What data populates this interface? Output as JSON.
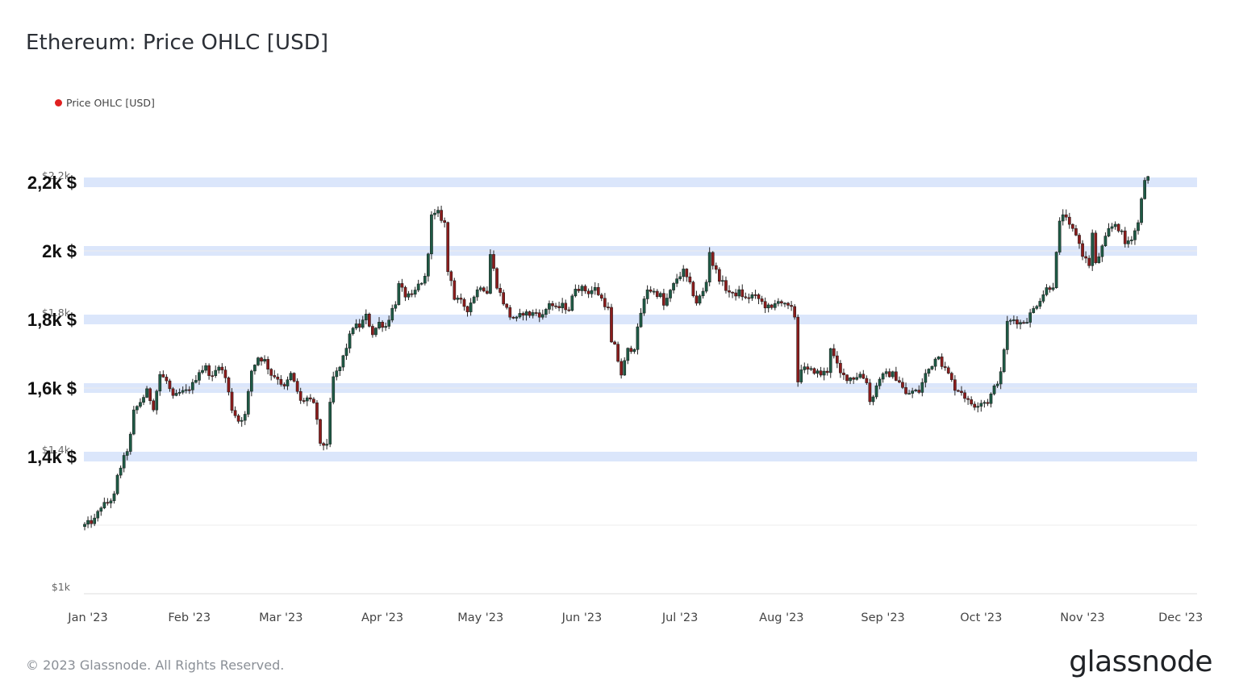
{
  "header": {
    "title": "Ethereum: Price OHLC [USD]"
  },
  "legend": {
    "label": "Price OHLC [USD]",
    "color": "#e02020"
  },
  "footer": {
    "copyright": "© 2023 Glassnode. All Rights Reserved.",
    "brand": "glassnode"
  },
  "colors": {
    "up": "#1e5a45",
    "down": "#8b1c1c",
    "highlight_band": "#dbe6fb",
    "grid": "#ececec"
  },
  "chart_data": {
    "type": "candlestick",
    "title": "Ethereum: Price OHLC [USD]",
    "series_name": "Price OHLC [USD]",
    "ylim": [
      1000,
      2300
    ],
    "y_ticks": [
      {
        "value": 1000,
        "label": "$1k"
      },
      {
        "value": 1400,
        "label": "$1.4k"
      },
      {
        "value": 1800,
        "label": "$1.8k"
      },
      {
        "value": 2200,
        "label": "$2.2k"
      }
    ],
    "highlight_levels": [
      {
        "value": 2200,
        "label": "2,2k $"
      },
      {
        "value": 2000,
        "label": "2k $"
      },
      {
        "value": 1800,
        "label": "1,8k $"
      },
      {
        "value": 1600,
        "label": "1,6k $"
      },
      {
        "value": 1400,
        "label": "1,4k $"
      }
    ],
    "x_ticks": [
      {
        "day": 0,
        "label": "Jan '23"
      },
      {
        "day": 31,
        "label": "Feb '23"
      },
      {
        "day": 59,
        "label": "Mar '23"
      },
      {
        "day": 90,
        "label": "Apr '23"
      },
      {
        "day": 120,
        "label": "May '23"
      },
      {
        "day": 151,
        "label": "Jun '23"
      },
      {
        "day": 181,
        "label": "Jul '23"
      },
      {
        "day": 212,
        "label": "Aug '23"
      },
      {
        "day": 243,
        "label": "Sep '23"
      },
      {
        "day": 273,
        "label": "Oct '23"
      },
      {
        "day": 304,
        "label": "Nov '23"
      },
      {
        "day": 334,
        "label": "Dec '23"
      }
    ],
    "x_range_days": [
      0,
      340
    ],
    "close_anchors": [
      [
        0,
        1200
      ],
      [
        3,
        1215
      ],
      [
        5,
        1255
      ],
      [
        7,
        1265
      ],
      [
        9,
        1285
      ],
      [
        10,
        1340
      ],
      [
        11,
        1370
      ],
      [
        13,
        1420
      ],
      [
        14,
        1460
      ],
      [
        15,
        1530
      ],
      [
        17,
        1560
      ],
      [
        19,
        1590
      ],
      [
        21,
        1545
      ],
      [
        23,
        1640
      ],
      [
        25,
        1620
      ],
      [
        27,
        1570
      ],
      [
        29,
        1585
      ],
      [
        31,
        1590
      ],
      [
        33,
        1610
      ],
      [
        35,
        1650
      ],
      [
        37,
        1660
      ],
      [
        39,
        1630
      ],
      [
        41,
        1670
      ],
      [
        43,
        1630
      ],
      [
        45,
        1540
      ],
      [
        47,
        1505
      ],
      [
        49,
        1520
      ],
      [
        51,
        1650
      ],
      [
        53,
        1690
      ],
      [
        55,
        1680
      ],
      [
        57,
        1640
      ],
      [
        59,
        1630
      ],
      [
        61,
        1600
      ],
      [
        63,
        1640
      ],
      [
        65,
        1590
      ],
      [
        66,
        1560
      ],
      [
        68,
        1570
      ],
      [
        70,
        1550
      ],
      [
        71,
        1510
      ],
      [
        72,
        1430
      ],
      [
        74,
        1440
      ],
      [
        75,
        1550
      ],
      [
        76,
        1630
      ],
      [
        78,
        1660
      ],
      [
        80,
        1720
      ],
      [
        82,
        1780
      ],
      [
        84,
        1780
      ],
      [
        86,
        1810
      ],
      [
        88,
        1760
      ],
      [
        90,
        1790
      ],
      [
        92,
        1780
      ],
      [
        94,
        1830
      ],
      [
        95,
        1850
      ],
      [
        96,
        1900
      ],
      [
        98,
        1870
      ],
      [
        100,
        1865
      ],
      [
        102,
        1900
      ],
      [
        104,
        1920
      ],
      [
        105,
        2000
      ],
      [
        106,
        2100
      ],
      [
        108,
        2110
      ],
      [
        110,
        2080
      ],
      [
        111,
        1940
      ],
      [
        112,
        1920
      ],
      [
        113,
        1860
      ],
      [
        115,
        1850
      ],
      [
        117,
        1830
      ],
      [
        119,
        1870
      ],
      [
        121,
        1900
      ],
      [
        123,
        1880
      ],
      [
        124,
        1990
      ],
      [
        126,
        1900
      ],
      [
        128,
        1850
      ],
      [
        130,
        1810
      ],
      [
        132,
        1800
      ],
      [
        134,
        1820
      ],
      [
        136,
        1815
      ],
      [
        138,
        1820
      ],
      [
        140,
        1810
      ],
      [
        142,
        1850
      ],
      [
        144,
        1830
      ],
      [
        146,
        1840
      ],
      [
        148,
        1830
      ],
      [
        150,
        1895
      ],
      [
        152,
        1890
      ],
      [
        154,
        1880
      ],
      [
        156,
        1890
      ],
      [
        158,
        1860
      ],
      [
        160,
        1830
      ],
      [
        161,
        1730
      ],
      [
        162,
        1720
      ],
      [
        164,
        1640
      ],
      [
        166,
        1710
      ],
      [
        168,
        1720
      ],
      [
        170,
        1820
      ],
      [
        172,
        1890
      ],
      [
        174,
        1880
      ],
      [
        176,
        1870
      ],
      [
        177,
        1840
      ],
      [
        179,
        1880
      ],
      [
        181,
        1920
      ],
      [
        183,
        1940
      ],
      [
        185,
        1900
      ],
      [
        187,
        1850
      ],
      [
        189,
        1880
      ],
      [
        190,
        1910
      ],
      [
        191,
        2000
      ],
      [
        192,
        1960
      ],
      [
        194,
        1920
      ],
      [
        196,
        1890
      ],
      [
        198,
        1870
      ],
      [
        200,
        1880
      ],
      [
        202,
        1860
      ],
      [
        204,
        1870
      ],
      [
        206,
        1860
      ],
      [
        208,
        1840
      ],
      [
        210,
        1830
      ],
      [
        212,
        1860
      ],
      [
        214,
        1840
      ],
      [
        216,
        1830
      ],
      [
        217,
        1810
      ],
      [
        218,
        1620
      ],
      [
        219,
        1660
      ],
      [
        221,
        1650
      ],
      [
        223,
        1650
      ],
      [
        225,
        1640
      ],
      [
        227,
        1650
      ],
      [
        228,
        1720
      ],
      [
        229,
        1690
      ],
      [
        231,
        1640
      ],
      [
        233,
        1630
      ],
      [
        235,
        1630
      ],
      [
        237,
        1640
      ],
      [
        239,
        1620
      ],
      [
        240,
        1560
      ],
      [
        241,
        1580
      ],
      [
        243,
        1630
      ],
      [
        245,
        1640
      ],
      [
        247,
        1640
      ],
      [
        249,
        1620
      ],
      [
        251,
        1580
      ],
      [
        253,
        1590
      ],
      [
        255,
        1590
      ],
      [
        257,
        1640
      ],
      [
        259,
        1670
      ],
      [
        261,
        1700
      ],
      [
        262,
        1670
      ],
      [
        264,
        1640
      ],
      [
        266,
        1600
      ],
      [
        268,
        1590
      ],
      [
        270,
        1560
      ],
      [
        272,
        1550
      ],
      [
        274,
        1560
      ],
      [
        276,
        1560
      ],
      [
        278,
        1600
      ],
      [
        280,
        1640
      ],
      [
        282,
        1790
      ],
      [
        284,
        1800
      ],
      [
        286,
        1790
      ],
      [
        288,
        1800
      ],
      [
        290,
        1830
      ],
      [
        292,
        1860
      ],
      [
        294,
        1890
      ],
      [
        296,
        1900
      ],
      [
        298,
        2080
      ],
      [
        299,
        2110
      ],
      [
        301,
        2070
      ],
      [
        303,
        2050
      ],
      [
        305,
        1990
      ],
      [
        307,
        1960
      ],
      [
        308,
        2050
      ],
      [
        309,
        1960
      ],
      [
        311,
        2010
      ],
      [
        313,
        2060
      ],
      [
        315,
        2080
      ],
      [
        317,
        2050
      ],
      [
        318,
        2020
      ],
      [
        320,
        2040
      ],
      [
        322,
        2080
      ],
      [
        323,
        2160
      ],
      [
        324,
        2200
      ],
      [
        325,
        2215
      ]
    ]
  }
}
